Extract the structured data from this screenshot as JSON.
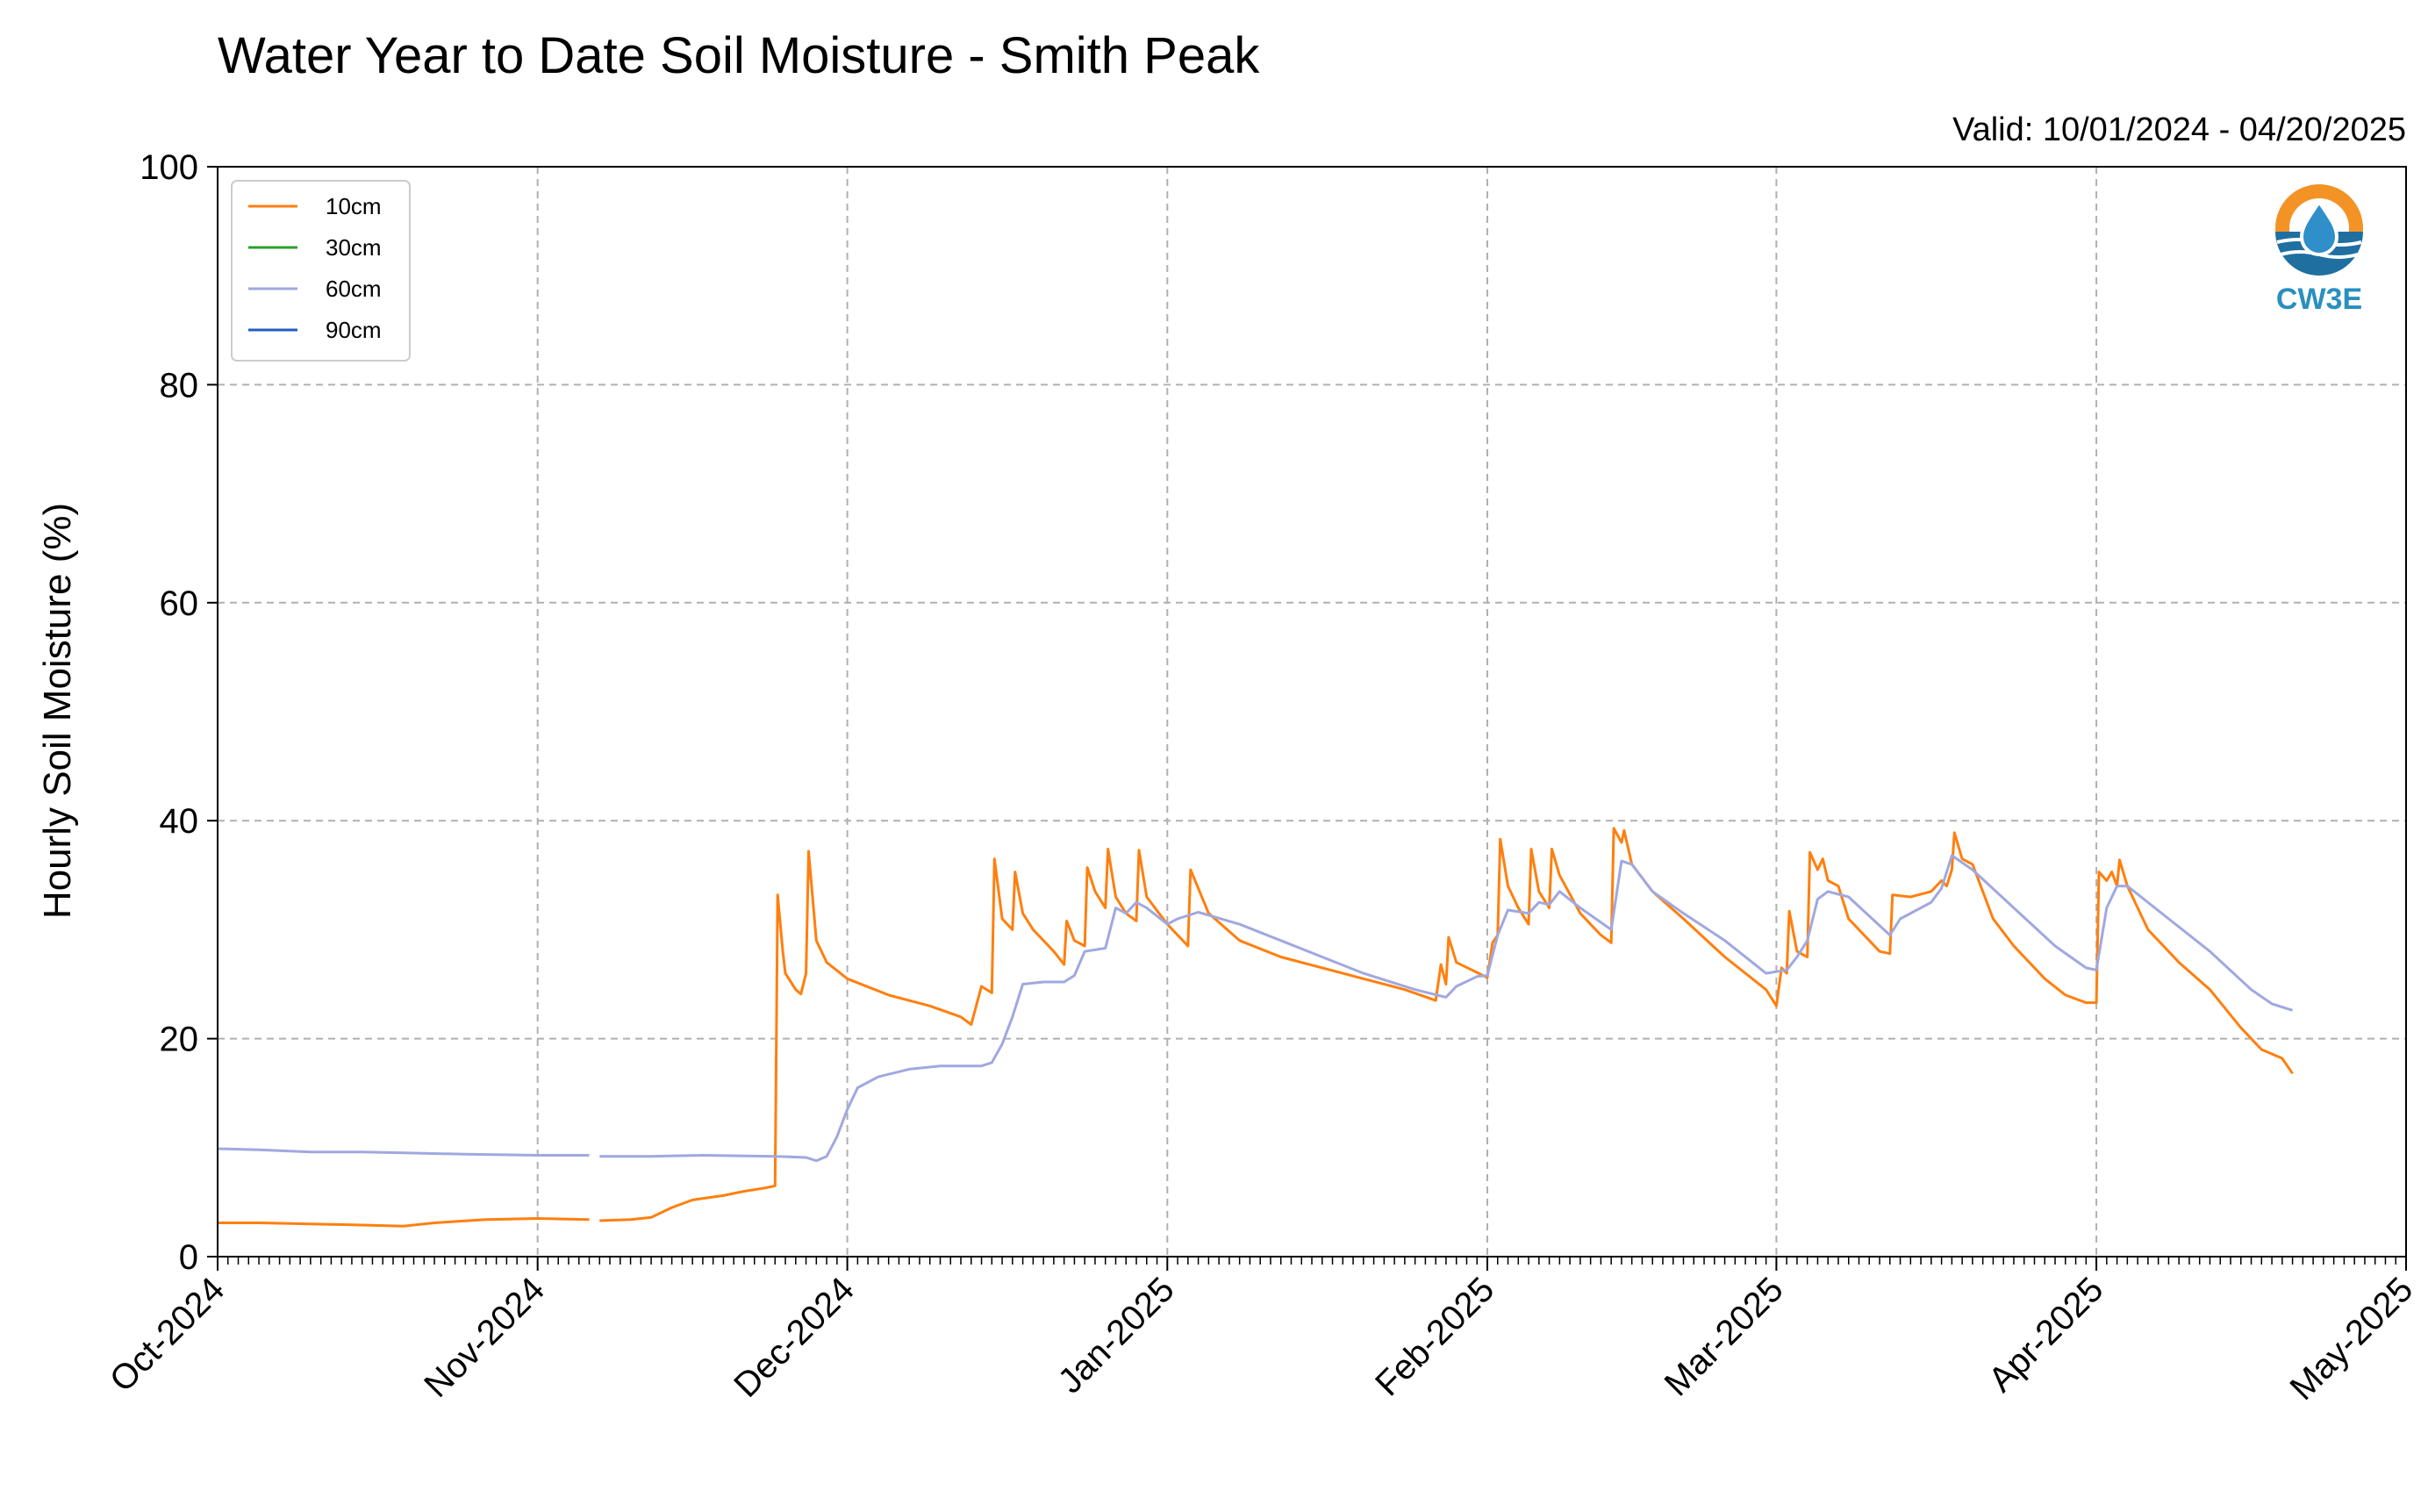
{
  "chart_data": {
    "type": "line",
    "title": "Water Year to Date Soil Moisture - Smith Peak",
    "subtitle": "Valid: 10/01/2024 - 04/20/2025",
    "ylabel": "Hourly Soil Moisture (%)",
    "xlabel": "",
    "ylim": [
      0,
      100
    ],
    "xlim": [
      "2024-10-01",
      "2025-05-01"
    ],
    "yticks": [
      "0",
      "20",
      "40",
      "60",
      "80",
      "100"
    ],
    "xticks": [
      {
        "date": "2024-10-01",
        "label": "Oct-2024"
      },
      {
        "date": "2024-11-01",
        "label": "Nov-2024"
      },
      {
        "date": "2024-12-01",
        "label": "Dec-2024"
      },
      {
        "date": "2025-01-01",
        "label": "Jan-2025"
      },
      {
        "date": "2025-02-01",
        "label": "Feb-2025"
      },
      {
        "date": "2025-03-01",
        "label": "Mar-2025"
      },
      {
        "date": "2025-04-01",
        "label": "Apr-2025"
      },
      {
        "date": "2025-05-01",
        "label": "May-2025"
      }
    ],
    "grid": true,
    "legend_position": "top-left",
    "logo_text": "CW3E",
    "series": [
      {
        "name": "10cm",
        "color": "#ff7f0e",
        "segments": [
          [
            [
              "2024-10-01",
              3.1
            ],
            [
              "2024-10-05",
              3.1
            ],
            [
              "2024-10-10",
              3.0
            ],
            [
              "2024-10-15",
              2.9
            ],
            [
              "2024-10-19",
              2.8
            ],
            [
              "2024-10-22",
              3.1
            ],
            [
              "2024-10-27",
              3.4
            ],
            [
              "2024-11-01",
              3.5
            ],
            [
              "2024-11-06",
              3.4
            ]
          ],
          [
            [
              "2024-11-07",
              3.3
            ],
            [
              "2024-11-10",
              3.4
            ],
            [
              "2024-11-12",
              3.6
            ],
            [
              "2024-11-14",
              4.5
            ],
            [
              "2024-11-16",
              5.2
            ],
            [
              "2024-11-19",
              5.6
            ],
            [
              "2024-11-21",
              6.0
            ],
            [
              "2024-11-23",
              6.3
            ],
            [
              "2024-11-24",
              6.5
            ],
            [
              "2024-11-24T06",
              33.2
            ],
            [
              "2024-11-24T18",
              28.0
            ],
            [
              "2024-11-25",
              26.0
            ],
            [
              "2024-11-26",
              24.5
            ],
            [
              "2024-11-26T12",
              24.1
            ],
            [
              "2024-11-27",
              26.0
            ],
            [
              "2024-11-27T06",
              37.2
            ],
            [
              "2024-11-28",
              29.0
            ],
            [
              "2024-11-29",
              27.0
            ],
            [
              "2024-12-01",
              25.5
            ],
            [
              "2024-12-05",
              24.0
            ],
            [
              "2024-12-09",
              23.0
            ],
            [
              "2024-12-12",
              22.0
            ],
            [
              "2024-12-13",
              21.3
            ],
            [
              "2024-12-14",
              24.8
            ],
            [
              "2024-12-15",
              24.2
            ],
            [
              "2024-12-15T06",
              36.5
            ],
            [
              "2024-12-16",
              31.0
            ],
            [
              "2024-12-17",
              30.0
            ],
            [
              "2024-12-17T06",
              35.3
            ],
            [
              "2024-12-18",
              31.5
            ],
            [
              "2024-12-19",
              30.0
            ],
            [
              "2024-12-21",
              28.0
            ],
            [
              "2024-12-22",
              26.8
            ],
            [
              "2024-12-22T06",
              30.8
            ],
            [
              "2024-12-23",
              29.0
            ],
            [
              "2024-12-24",
              28.5
            ],
            [
              "2024-12-24T06",
              35.7
            ],
            [
              "2024-12-25",
              33.5
            ],
            [
              "2024-12-26",
              32.0
            ],
            [
              "2024-12-26T06",
              37.4
            ],
            [
              "2024-12-27",
              33.0
            ],
            [
              "2024-12-28",
              31.5
            ],
            [
              "2024-12-29",
              30.8
            ],
            [
              "2024-12-29T06",
              37.3
            ],
            [
              "2024-12-30",
              33.0
            ],
            [
              "2025-01-01",
              30.5
            ],
            [
              "2025-01-03",
              28.5
            ],
            [
              "2025-01-03T06",
              35.5
            ],
            [
              "2025-01-05",
              31.5
            ],
            [
              "2025-01-08",
              29.0
            ],
            [
              "2025-01-12",
              27.5
            ],
            [
              "2025-01-16",
              26.5
            ],
            [
              "2025-01-20",
              25.5
            ],
            [
              "2025-01-24",
              24.5
            ],
            [
              "2025-01-27",
              23.5
            ],
            [
              "2025-01-27T12",
              26.8
            ],
            [
              "2025-01-28",
              25.0
            ],
            [
              "2025-01-28T06",
              29.3
            ],
            [
              "2025-01-29",
              27.0
            ],
            [
              "2025-02-01",
              25.6
            ],
            [
              "2025-02-01T12",
              28.8
            ],
            [
              "2025-02-02",
              29.5
            ],
            [
              "2025-02-02T06",
              38.3
            ],
            [
              "2025-02-03",
              34.0
            ],
            [
              "2025-02-04",
              32.0
            ],
            [
              "2025-02-05",
              30.5
            ],
            [
              "2025-02-05T06",
              37.4
            ],
            [
              "2025-02-06",
              33.5
            ],
            [
              "2025-02-07",
              32.0
            ],
            [
              "2025-02-07T06",
              37.4
            ],
            [
              "2025-02-08",
              35.0
            ],
            [
              "2025-02-10",
              31.5
            ],
            [
              "2025-02-12",
              29.5
            ],
            [
              "2025-02-13",
              28.8
            ],
            [
              "2025-02-13T06",
              39.3
            ],
            [
              "2025-02-14",
              38.0
            ],
            [
              "2025-02-14T06",
              39.1
            ],
            [
              "2025-02-15",
              36.0
            ],
            [
              "2025-02-17",
              33.5
            ],
            [
              "2025-02-20",
              31.0
            ],
            [
              "2025-02-24",
              27.5
            ],
            [
              "2025-02-28",
              24.5
            ],
            [
              "2025-03-01",
              23.0
            ],
            [
              "2025-03-01T12",
              26.5
            ],
            [
              "2025-03-02",
              26.0
            ],
            [
              "2025-03-02T06",
              31.7
            ],
            [
              "2025-03-03",
              28.0
            ],
            [
              "2025-03-04",
              27.5
            ],
            [
              "2025-03-04T06",
              37.1
            ],
            [
              "2025-03-05",
              35.5
            ],
            [
              "2025-03-05T12",
              36.5
            ],
            [
              "2025-03-06",
              34.5
            ],
            [
              "2025-03-07",
              34.0
            ],
            [
              "2025-03-08",
              31.0
            ],
            [
              "2025-03-10",
              29.0
            ],
            [
              "2025-03-11",
              28.0
            ],
            [
              "2025-03-12",
              27.8
            ],
            [
              "2025-03-12T06",
              33.2
            ],
            [
              "2025-03-14",
              33.0
            ],
            [
              "2025-03-16",
              33.5
            ],
            [
              "2025-03-17",
              34.5
            ],
            [
              "2025-03-17T12",
              34.0
            ],
            [
              "2025-03-18",
              35.5
            ],
            [
              "2025-03-18T06",
              38.9
            ],
            [
              "2025-03-19",
              36.5
            ],
            [
              "2025-03-20",
              36.0
            ],
            [
              "2025-03-22",
              31.0
            ],
            [
              "2025-03-24",
              28.5
            ],
            [
              "2025-03-27",
              25.5
            ],
            [
              "2025-03-29",
              24.0
            ],
            [
              "2025-03-31",
              23.3
            ],
            [
              "2025-04-01",
              23.3
            ],
            [
              "2025-04-01T06",
              35.3
            ],
            [
              "2025-04-02",
              34.5
            ],
            [
              "2025-04-02T12",
              35.3
            ],
            [
              "2025-04-03",
              34.0
            ],
            [
              "2025-04-03T06",
              36.4
            ],
            [
              "2025-04-04",
              34.0
            ],
            [
              "2025-04-06",
              30.0
            ],
            [
              "2025-04-09",
              27.0
            ],
            [
              "2025-04-12",
              24.5
            ],
            [
              "2025-04-15",
              21.0
            ],
            [
              "2025-04-17",
              19.0
            ],
            [
              "2025-04-19",
              18.2
            ],
            [
              "2025-04-20",
              16.8
            ]
          ]
        ]
      },
      {
        "name": "30cm",
        "color": "#2ca02c",
        "segments": []
      },
      {
        "name": "60cm",
        "color": "#a0a8e0",
        "segments": [
          [
            [
              "2024-10-01",
              9.9
            ],
            [
              "2024-10-05",
              9.8
            ],
            [
              "2024-10-10",
              9.6
            ],
            [
              "2024-10-15",
              9.6
            ],
            [
              "2024-10-20",
              9.5
            ],
            [
              "2024-10-25",
              9.4
            ],
            [
              "2024-11-01",
              9.3
            ],
            [
              "2024-11-06",
              9.3
            ]
          ],
          [
            [
              "2024-11-07",
              9.2
            ],
            [
              "2024-11-12",
              9.2
            ],
            [
              "2024-11-17",
              9.3
            ],
            [
              "2024-11-24",
              9.2
            ],
            [
              "2024-11-27",
              9.1
            ],
            [
              "2024-11-28",
              8.8
            ],
            [
              "2024-11-29",
              9.2
            ],
            [
              "2024-11-30",
              11.0
            ],
            [
              "2024-12-01",
              13.5
            ],
            [
              "2024-12-02",
              15.5
            ],
            [
              "2024-12-04",
              16.5
            ],
            [
              "2024-12-07",
              17.2
            ],
            [
              "2024-12-10",
              17.5
            ],
            [
              "2024-12-14",
              17.5
            ],
            [
              "2024-12-15",
              17.8
            ],
            [
              "2024-12-16",
              19.5
            ],
            [
              "2024-12-17",
              22.0
            ],
            [
              "2024-12-18",
              25.0
            ],
            [
              "2024-12-20",
              25.2
            ],
            [
              "2024-12-22",
              25.2
            ],
            [
              "2024-12-23",
              25.8
            ],
            [
              "2024-12-24",
              28.0
            ],
            [
              "2024-12-26",
              28.3
            ],
            [
              "2024-12-27",
              32.0
            ],
            [
              "2024-12-28",
              31.5
            ],
            [
              "2024-12-29",
              32.5
            ],
            [
              "2024-12-30",
              32.0
            ],
            [
              "2025-01-01",
              30.5
            ],
            [
              "2025-01-02",
              31.0
            ],
            [
              "2025-01-04",
              31.6
            ],
            [
              "2025-01-08",
              30.5
            ],
            [
              "2025-01-12",
              29.0
            ],
            [
              "2025-01-16",
              27.5
            ],
            [
              "2025-01-20",
              26.0
            ],
            [
              "2025-01-25",
              24.5
            ],
            [
              "2025-01-28",
              23.8
            ],
            [
              "2025-01-29",
              24.8
            ],
            [
              "2025-01-31",
              25.7
            ],
            [
              "2025-02-01",
              25.8
            ],
            [
              "2025-02-02",
              29.5
            ],
            [
              "2025-02-03",
              31.8
            ],
            [
              "2025-02-05",
              31.5
            ],
            [
              "2025-02-06",
              32.5
            ],
            [
              "2025-02-07",
              32.3
            ],
            [
              "2025-02-08",
              33.5
            ],
            [
              "2025-02-10",
              32.0
            ],
            [
              "2025-02-13",
              30.0
            ],
            [
              "2025-02-14",
              36.3
            ],
            [
              "2025-02-15",
              36.0
            ],
            [
              "2025-02-17",
              33.5
            ],
            [
              "2025-02-20",
              31.5
            ],
            [
              "2025-02-24",
              29.0
            ],
            [
              "2025-02-28",
              26.0
            ],
            [
              "2025-03-02",
              26.3
            ],
            [
              "2025-03-03",
              27.5
            ],
            [
              "2025-03-04",
              29.0
            ],
            [
              "2025-03-05",
              32.8
            ],
            [
              "2025-03-06",
              33.5
            ],
            [
              "2025-03-08",
              33.0
            ],
            [
              "2025-03-12",
              29.5
            ],
            [
              "2025-03-13",
              31.0
            ],
            [
              "2025-03-16",
              32.5
            ],
            [
              "2025-03-17",
              33.8
            ],
            [
              "2025-03-18",
              36.8
            ],
            [
              "2025-03-20",
              35.5
            ],
            [
              "2025-03-24",
              32.0
            ],
            [
              "2025-03-28",
              28.5
            ],
            [
              "2025-03-31",
              26.5
            ],
            [
              "2025-04-01",
              26.3
            ],
            [
              "2025-04-02",
              32.0
            ],
            [
              "2025-04-03",
              34.0
            ],
            [
              "2025-04-04",
              34.0
            ],
            [
              "2025-04-08",
              31.0
            ],
            [
              "2025-04-12",
              28.0
            ],
            [
              "2025-04-16",
              24.5
            ],
            [
              "2025-04-18",
              23.2
            ],
            [
              "2025-04-20",
              22.6
            ]
          ]
        ]
      },
      {
        "name": "90cm",
        "color": "#1f5fbf",
        "segments": []
      }
    ]
  }
}
